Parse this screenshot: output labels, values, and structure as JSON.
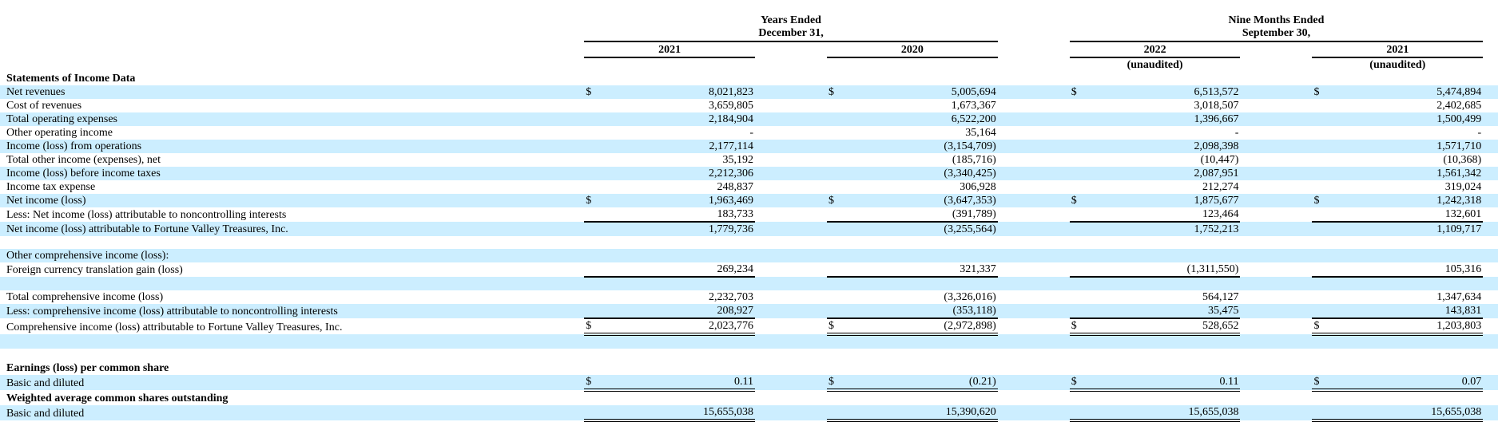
{
  "document": {
    "kind": "statements-of-income-table",
    "colors": {
      "row_shade": "#cceeff",
      "border": "#000000",
      "text": "#000000",
      "background": "#ffffff"
    },
    "table": {
      "header": {
        "groups": [
          {
            "title_line1": "Years Ended",
            "title_line2": "December 31,",
            "cols": [
              {
                "year": "2021",
                "note": ""
              },
              {
                "year": "2020",
                "note": ""
              }
            ]
          },
          {
            "title_line1": "Nine Months Ended",
            "title_line2": "September 30,",
            "cols": [
              {
                "year": "2022",
                "note": "(unaudited)"
              },
              {
                "year": "2021",
                "note": "(unaudited)"
              }
            ]
          }
        ]
      },
      "rows": [
        {
          "label": "Statements of Income Data",
          "bold": true,
          "shaded": false
        },
        {
          "label": "Net revenues",
          "shaded": true,
          "cur": [
            "$",
            "$",
            "$",
            "$"
          ],
          "values": [
            "8,021,823",
            "5,005,694",
            "6,513,572",
            "5,474,894"
          ]
        },
        {
          "label": "Cost of revenues",
          "shaded": false,
          "values": [
            "3,659,805",
            "1,673,367",
            "3,018,507",
            "2,402,685"
          ]
        },
        {
          "label": "Total operating expenses",
          "shaded": true,
          "values": [
            "2,184,904",
            "6,522,200",
            "1,396,667",
            "1,500,499"
          ]
        },
        {
          "label": "Other operating income",
          "shaded": false,
          "values": [
            "-",
            "35,164",
            "-",
            "-"
          ]
        },
        {
          "label": "Income (loss) from operations",
          "shaded": true,
          "values": [
            "2,177,114",
            "(3,154,709)",
            "2,098,398",
            "1,571,710"
          ]
        },
        {
          "label": "Total other income (expenses), net",
          "shaded": false,
          "values": [
            "35,192",
            "(185,716)",
            "(10,447)",
            "(10,368)"
          ]
        },
        {
          "label": "Income (loss) before income taxes",
          "shaded": true,
          "values": [
            "2,212,306",
            "(3,340,425)",
            "2,087,951",
            "1,561,342"
          ]
        },
        {
          "label": "Income tax expense",
          "shaded": false,
          "values": [
            "248,837",
            "306,928",
            "212,274",
            "319,024"
          ]
        },
        {
          "label": "Net income (loss)",
          "shaded": true,
          "cur": [
            "$",
            "$",
            "$",
            "$"
          ],
          "values": [
            "1,963,469",
            "(3,647,353)",
            "1,875,677",
            "1,242,318"
          ]
        },
        {
          "label": "Less: Net income (loss) attributable to noncontrolling interests",
          "shaded": false,
          "values": [
            "183,733",
            "(391,789)",
            "123,464",
            "132,601"
          ],
          "border": "single"
        },
        {
          "label": "Net income (loss) attributable to Fortune Valley Treasures, Inc.",
          "shaded": true,
          "values": [
            "1,779,736",
            "(3,255,564)",
            "1,752,213",
            "1,109,717"
          ]
        },
        {
          "blank": true,
          "shaded": false
        },
        {
          "label": "Other comprehensive income (loss):",
          "shaded": true
        },
        {
          "label": "Foreign currency translation gain (loss)",
          "shaded": false,
          "values": [
            "269,234",
            "321,337",
            "(1,311,550)",
            "105,316"
          ],
          "border": "single"
        },
        {
          "blank": true,
          "shaded": true
        },
        {
          "label": "Total comprehensive income (loss)",
          "shaded": false,
          "values": [
            "2,232,703",
            "(3,326,016)",
            "564,127",
            "1,347,634"
          ]
        },
        {
          "label": "Less: comprehensive income (loss) attributable to noncontrolling interests",
          "shaded": true,
          "values": [
            "208,927",
            "(353,118)",
            "35,475",
            "143,831"
          ],
          "border": "single"
        },
        {
          "label": "Comprehensive income (loss) attributable to Fortune Valley Treasures, Inc.",
          "shaded": false,
          "cur": [
            "$",
            "$",
            "$",
            "$"
          ],
          "values": [
            "2,023,776",
            "(2,972,898)",
            "528,652",
            "1,203,803"
          ],
          "border": "double"
        },
        {
          "blank": true,
          "shaded": true
        },
        {
          "blank": true,
          "shaded": false
        },
        {
          "label": "Earnings (loss) per common share",
          "bold": true,
          "shaded": false
        },
        {
          "label": "Basic and diluted",
          "shaded": true,
          "cur": [
            "$",
            "$",
            "$",
            "$"
          ],
          "values": [
            "0.11",
            "(0.21)",
            "0.11",
            "0.07"
          ],
          "border": "double"
        },
        {
          "label": "Weighted average common shares outstanding",
          "bold": true,
          "shaded": false
        },
        {
          "label": "Basic and diluted",
          "shaded": true,
          "values": [
            "15,655,038",
            "15,390,620",
            "15,655,038",
            "15,655,038"
          ],
          "border": "double"
        }
      ]
    }
  }
}
